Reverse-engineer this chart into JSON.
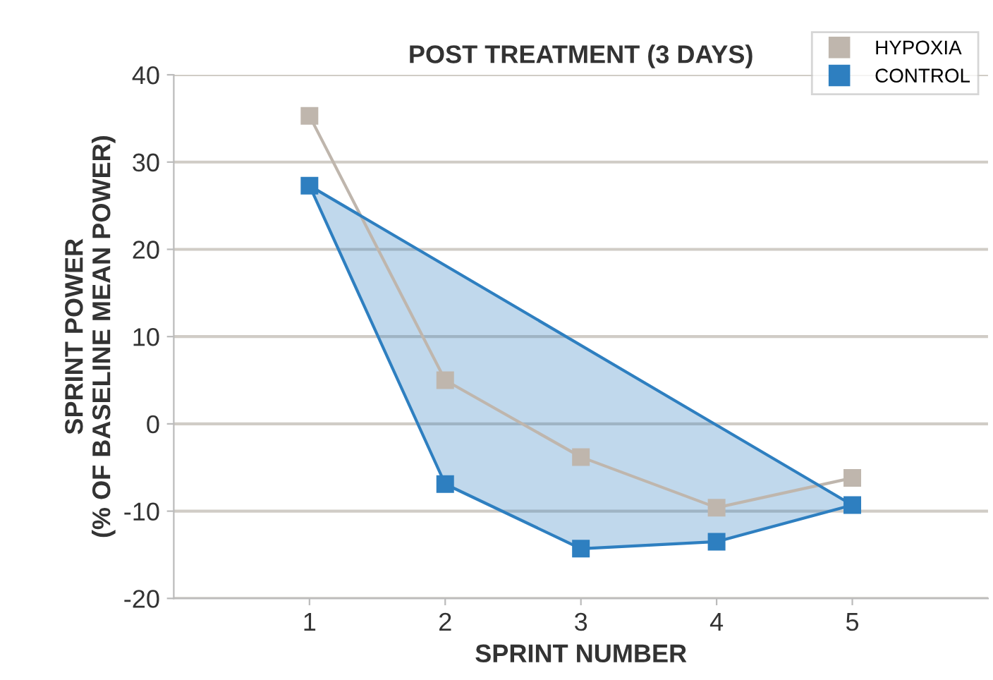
{
  "chart_data": {
    "type": "line",
    "title": "POST TREATMENT (3 DAYS)",
    "xlabel": "SPRINT NUMBER",
    "ylabel": "SPRINT POWER\n(% OF BASELINE MEAN POWER)",
    "x": [
      1,
      2,
      3,
      4,
      5
    ],
    "series": [
      {
        "name": "HYPOXIA",
        "color": "#bfb6ad",
        "values": [
          35.3,
          5.0,
          -3.8,
          -9.6,
          -6.2
        ]
      },
      {
        "name": "CONTROL",
        "color": "#2e7fc0",
        "type": "area",
        "values": [
          27.3,
          -6.9,
          -14.3,
          -13.5,
          -9.3
        ]
      }
    ],
    "xlim": [
      0,
      6
    ],
    "xticks": [
      1,
      2,
      3,
      4,
      5
    ],
    "ylim": [
      -20,
      40
    ],
    "yticks": [
      -20,
      -10,
      0,
      10,
      20,
      30,
      40
    ],
    "grid": "y",
    "legend": "top right",
    "marker": "square",
    "line_style": "solid"
  }
}
